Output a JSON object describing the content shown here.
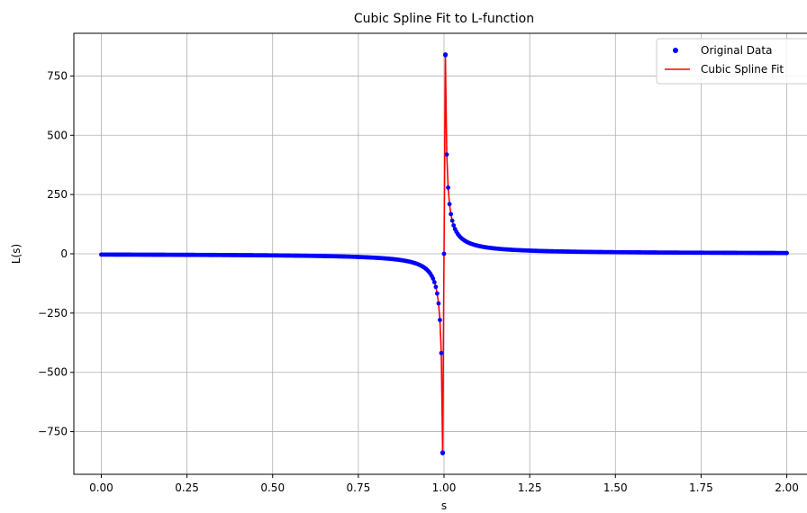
{
  "chart_data": {
    "type": "line",
    "title": "Cubic Spline Fit to L-function",
    "xlabel": "s",
    "ylabel": "L(s)",
    "xlim": [
      -0.08,
      2.08
    ],
    "ylim": [
      -930,
      930
    ],
    "xticks": [
      0.0,
      0.25,
      0.5,
      0.75,
      1.0,
      1.25,
      1.5,
      1.75,
      2.0
    ],
    "xtick_labels": [
      "0.00",
      "0.25",
      "0.50",
      "0.75",
      "1.00",
      "1.25",
      "1.50",
      "1.75",
      "2.00"
    ],
    "yticks": [
      -750,
      -500,
      -250,
      0,
      250,
      500,
      750
    ],
    "ytick_labels": [
      "−750",
      "−500",
      "−250",
      "0",
      "250",
      "500",
      "750"
    ],
    "grid": true,
    "legend_position": "top-right",
    "series": [
      {
        "name": "Original Data",
        "style": "markers",
        "color": "#0000ff",
        "x_range": [
          0.0,
          2.0
        ],
        "num_points": 501,
        "pole_at": 1.0,
        "extreme_points": [
          {
            "x": 0.996,
            "y": -840
          },
          {
            "x": 1.004,
            "y": 840
          }
        ]
      },
      {
        "name": "Cubic Spline Fit",
        "style": "line",
        "color": "#ff0000",
        "x_range": [
          0.0,
          2.0
        ],
        "pole_at": 1.0
      }
    ]
  }
}
